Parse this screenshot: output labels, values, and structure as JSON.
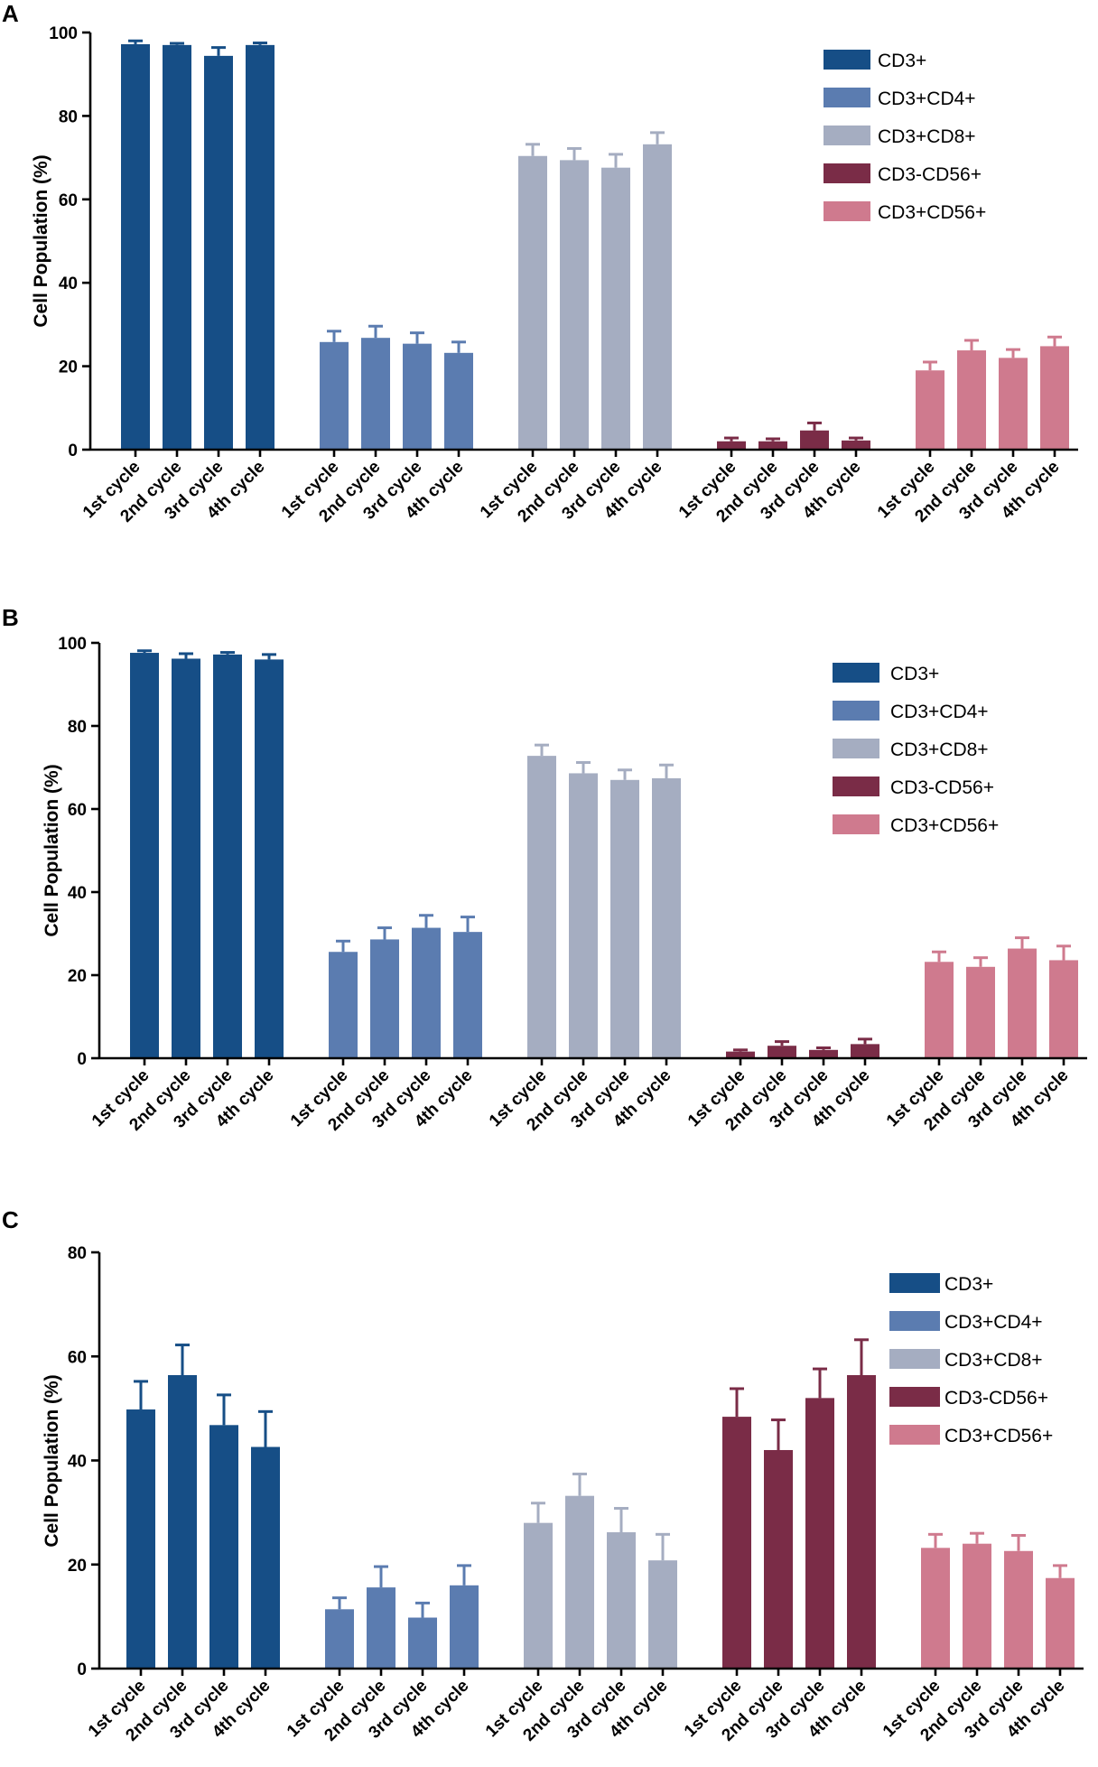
{
  "chart_data": [
    {
      "panel": "A",
      "type": "bar",
      "title": "",
      "xlabel": "",
      "ylabel": "Cell Population (%)",
      "ylim": [
        0,
        100
      ],
      "yticks": [
        0,
        20,
        40,
        60,
        80,
        100
      ],
      "categories": [
        "1st cycle",
        "2nd cycle",
        "3rd cycle",
        "4th cycle"
      ],
      "legend_position": "top-right",
      "series": [
        {
          "name": "CD3+",
          "color": "#164e86",
          "values": [
            97.2,
            97.0,
            94.4,
            97.0
          ],
          "errors": [
            0.8,
            0.4,
            2.0,
            0.5
          ]
        },
        {
          "name": "CD3+CD4+",
          "color": "#5b7cb0",
          "values": [
            25.8,
            26.8,
            25.4,
            23.2
          ],
          "errors": [
            2.6,
            2.8,
            2.6,
            2.6
          ]
        },
        {
          "name": "CD3+CD8+",
          "color": "#a5adc1",
          "values": [
            70.4,
            69.4,
            67.6,
            73.2
          ],
          "errors": [
            2.8,
            2.8,
            3.2,
            2.8
          ]
        },
        {
          "name": "CD3-CD56+",
          "color": "#7a2c47",
          "values": [
            2.0,
            2.0,
            4.6,
            2.2
          ],
          "errors": [
            0.8,
            0.6,
            1.8,
            0.6
          ]
        },
        {
          "name": "CD3+CD56+",
          "color": "#cf7a8e",
          "values": [
            19.0,
            23.8,
            22.0,
            24.8
          ],
          "errors": [
            2.0,
            2.4,
            2.0,
            2.2
          ]
        }
      ]
    },
    {
      "panel": "B",
      "type": "bar",
      "title": "",
      "xlabel": "",
      "ylabel": "Cell Population (%)",
      "ylim": [
        0,
        100
      ],
      "yticks": [
        0,
        20,
        40,
        60,
        80,
        100
      ],
      "categories": [
        "1st cycle",
        "2nd cycle",
        "3rd cycle",
        "4th cycle"
      ],
      "legend_position": "top-right",
      "series": [
        {
          "name": "CD3+",
          "color": "#164e86",
          "values": [
            97.6,
            96.2,
            97.2,
            96.0
          ],
          "errors": [
            0.5,
            1.2,
            0.5,
            1.2
          ]
        },
        {
          "name": "CD3+CD4+",
          "color": "#5b7cb0",
          "values": [
            25.6,
            28.6,
            31.4,
            30.4
          ],
          "errors": [
            2.6,
            2.8,
            3.0,
            3.6
          ]
        },
        {
          "name": "CD3+CD8+",
          "color": "#a5adc1",
          "values": [
            72.8,
            68.6,
            67.0,
            67.4
          ],
          "errors": [
            2.6,
            2.6,
            2.4,
            3.2
          ]
        },
        {
          "name": "CD3-CD56+",
          "color": "#7a2c47",
          "values": [
            1.6,
            3.0,
            2.0,
            3.4
          ],
          "errors": [
            0.4,
            1.0,
            0.5,
            1.2
          ]
        },
        {
          "name": "CD3+CD56+",
          "color": "#cf7a8e",
          "values": [
            23.2,
            22.0,
            26.4,
            23.6
          ],
          "errors": [
            2.4,
            2.2,
            2.6,
            3.4
          ]
        }
      ]
    },
    {
      "panel": "C",
      "type": "bar",
      "title": "",
      "xlabel": "",
      "ylabel": "Cell Population (%)",
      "ylim": [
        0,
        80
      ],
      "yticks": [
        0,
        20,
        40,
        60,
        80
      ],
      "categories": [
        "1st cycle",
        "2nd cycle",
        "3rd cycle",
        "4th cycle"
      ],
      "legend_position": "top-right",
      "series": [
        {
          "name": "CD3+",
          "color": "#164e86",
          "values": [
            49.8,
            56.4,
            46.8,
            42.6
          ],
          "errors": [
            5.4,
            5.8,
            5.8,
            6.8
          ]
        },
        {
          "name": "CD3+CD4+",
          "color": "#5b7cb0",
          "values": [
            11.4,
            15.6,
            9.8,
            16.0
          ],
          "errors": [
            2.2,
            4.0,
            2.8,
            3.8
          ]
        },
        {
          "name": "CD3+CD8+",
          "color": "#a5adc1",
          "values": [
            28.0,
            33.2,
            26.2,
            20.8
          ],
          "errors": [
            3.8,
            4.2,
            4.6,
            5.0
          ]
        },
        {
          "name": "CD3-CD56+",
          "color": "#7a2c47",
          "values": [
            48.4,
            42.0,
            52.0,
            56.4
          ],
          "errors": [
            5.4,
            5.8,
            5.6,
            6.8
          ]
        },
        {
          "name": "CD3+CD56+",
          "color": "#cf7a8e",
          "values": [
            23.2,
            24.0,
            22.6,
            17.4
          ],
          "errors": [
            2.6,
            2.0,
            3.0,
            2.4
          ]
        }
      ]
    }
  ]
}
